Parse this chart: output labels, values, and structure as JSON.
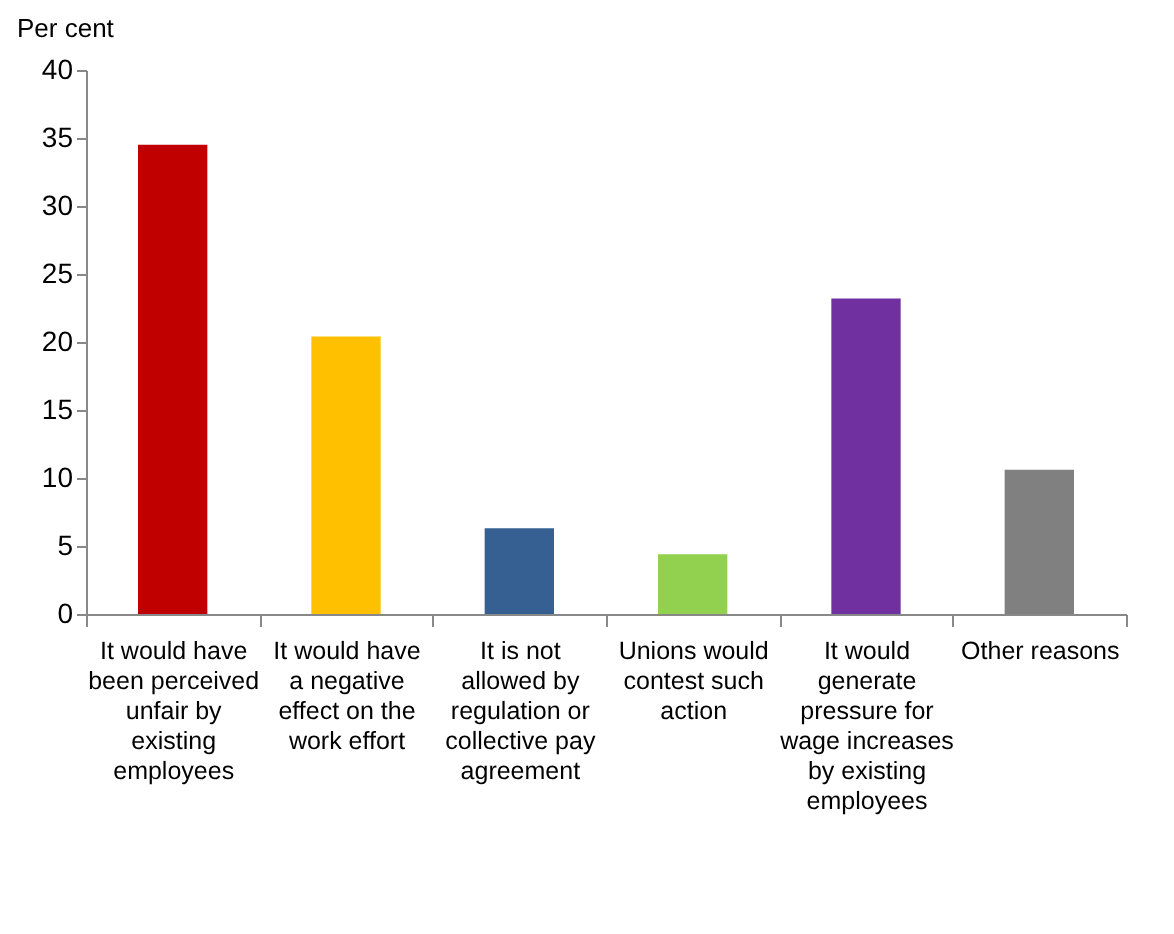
{
  "chart_data": {
    "type": "bar",
    "ylabel": "Per cent",
    "categories": [
      "It would have been perceived unfair by existing employees",
      "It would have a negative effect on the work effort",
      "It is not allowed by regulation or collective pay agreement",
      "Unions would contest such action",
      "It would generate pressure for wage increases by existing employees",
      "Other reasons"
    ],
    "values": [
      34.5,
      20.4,
      6.3,
      4.4,
      23.2,
      10.6
    ],
    "colors": [
      "#c00000",
      "#ffc000",
      "#366092",
      "#92d050",
      "#7030a0",
      "#808080"
    ],
    "ylim": [
      0,
      40
    ],
    "yticks": [
      0,
      5,
      10,
      15,
      20,
      25,
      30,
      35,
      40
    ],
    "grid": false
  }
}
